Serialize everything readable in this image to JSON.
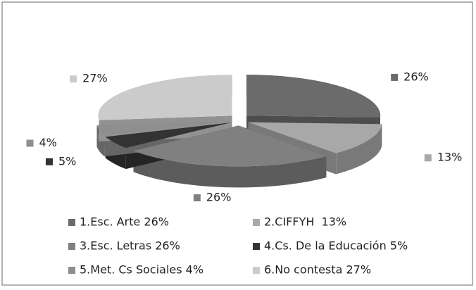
{
  "chart_data": {
    "type": "pie",
    "categories": [
      "1.Esc. Arte 26%",
      "2.CIFFYH  13%",
      "3.Esc. Letras 26%",
      "4.Cs. De la Educación 5%",
      "5.Met. Cs Sociales 4%",
      "6.No contesta 27%"
    ],
    "values": [
      26,
      13,
      26,
      5,
      4,
      27
    ],
    "value_labels": [
      "26%",
      "13%",
      "26%",
      "5%",
      "4%",
      "27%"
    ],
    "colors": [
      "#6b6b6b",
      "#a8a8a8",
      "#808080",
      "#333333",
      "#8e8e8e",
      "#cbcbcb"
    ],
    "legend": "bottom"
  }
}
